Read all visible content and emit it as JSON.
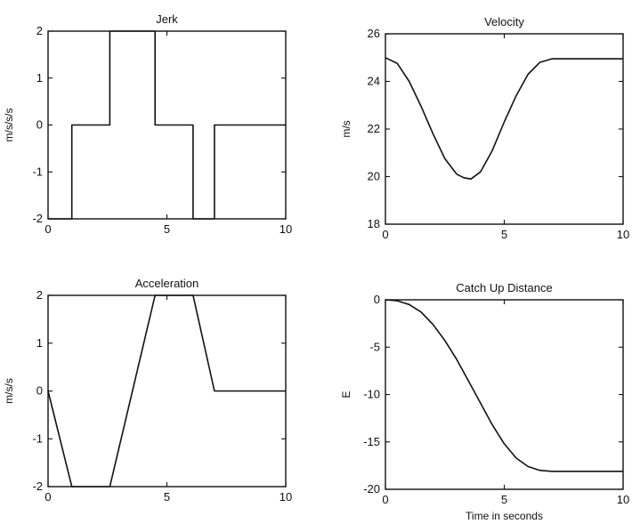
{
  "chart_data": [
    {
      "type": "line",
      "title": "Jerk",
      "xlabel": "",
      "ylabel": "m/s/s/s",
      "xlim": [
        0,
        10
      ],
      "ylim": [
        -2,
        2
      ],
      "xticks": [
        0,
        5,
        10
      ],
      "yticks": [
        2,
        1,
        0,
        -1,
        -2
      ],
      "grid": false,
      "series": [
        {
          "x": [
            0,
            1,
            1,
            2.6,
            2.6,
            4.5,
            4.5,
            6.1,
            6.1,
            7,
            7,
            10
          ],
          "y": [
            -2,
            -2,
            0,
            0,
            2,
            2,
            0,
            0,
            -2,
            -2,
            0,
            0
          ]
        }
      ]
    },
    {
      "type": "line",
      "title": "Velocity",
      "xlabel": "",
      "ylabel": "m/s",
      "xlim": [
        0,
        10
      ],
      "ylim": [
        18,
        26
      ],
      "xticks": [
        0,
        5,
        10
      ],
      "yticks": [
        26,
        24,
        22,
        20,
        18
      ],
      "grid": false,
      "series": [
        {
          "x": [
            0,
            0.5,
            1,
            1.5,
            2,
            2.5,
            3,
            3.3,
            3.6,
            4,
            4.5,
            5,
            5.5,
            6,
            6.5,
            7,
            8,
            10
          ],
          "y": [
            25,
            24.75,
            24,
            22.95,
            21.8,
            20.75,
            20.1,
            19.95,
            19.9,
            20.2,
            21.1,
            22.3,
            23.4,
            24.3,
            24.8,
            24.95,
            24.95,
            24.95
          ]
        }
      ]
    },
    {
      "type": "line",
      "title": "Acceleration",
      "xlabel": "",
      "ylabel": "m/s/s",
      "xlim": [
        0,
        10
      ],
      "ylim": [
        -2,
        2
      ],
      "xticks": [
        0,
        5,
        10
      ],
      "yticks": [
        2,
        1,
        0,
        -1,
        -2
      ],
      "grid": false,
      "series": [
        {
          "x": [
            0,
            1,
            2.6,
            4.5,
            6.1,
            7,
            10
          ],
          "y": [
            0,
            -2,
            -2,
            2,
            2,
            0,
            0
          ]
        }
      ]
    },
    {
      "type": "line",
      "title": "Catch Up Distance",
      "xlabel": "Time in seconds",
      "ylabel": "E",
      "xlim": [
        0,
        10
      ],
      "ylim": [
        -20,
        0
      ],
      "xticks": [
        0,
        5,
        10
      ],
      "yticks": [
        0,
        -5,
        -10,
        -15,
        -20
      ],
      "grid": false,
      "series": [
        {
          "x": [
            0,
            0.5,
            1,
            1.5,
            2,
            2.5,
            3,
            3.5,
            4,
            4.5,
            5,
            5.5,
            6,
            6.5,
            7,
            8,
            10
          ],
          "y": [
            0,
            -0.1,
            -0.5,
            -1.3,
            -2.6,
            -4.3,
            -6.3,
            -8.6,
            -10.9,
            -13.2,
            -15.2,
            -16.7,
            -17.6,
            -18,
            -18.1,
            -18.1,
            -18.1
          ]
        }
      ]
    }
  ]
}
